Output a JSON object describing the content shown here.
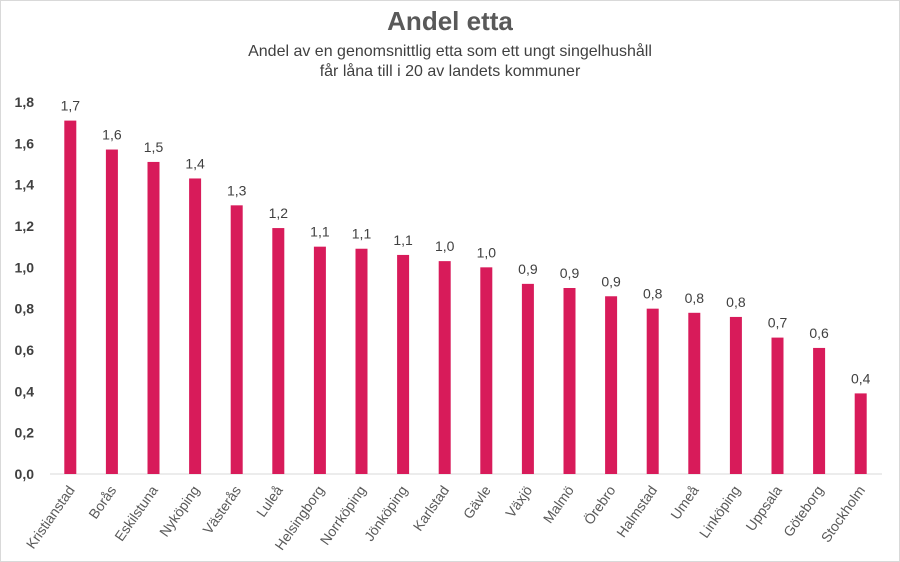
{
  "chart_data": {
    "type": "bar",
    "title": "Andel etta",
    "subtitle": [
      "Andel av en genomsnittlig etta som ett ungt singelhushåll",
      "får låna till i 20 av landets kommuner"
    ],
    "xlabel": "",
    "ylabel": "",
    "ylim": [
      0,
      1.8
    ],
    "yticks": [
      "0,0",
      "0,2",
      "0,4",
      "0,6",
      "0,8",
      "1,0",
      "1,2",
      "1,4",
      "1,6",
      "1,8"
    ],
    "grid": false,
    "bar_color": "#D81B5A",
    "categories": [
      "Kristianstad",
      "Borås",
      "Eskilstuna",
      "Nyköping",
      "Västerås",
      "Luleå",
      "Helsingborg",
      "Norrköping",
      "Jönköping",
      "Karlstad",
      "Gävle",
      "Växjö",
      "Malmö",
      "Örebro",
      "Halmstad",
      "Umeå",
      "Linköping",
      "Uppsala",
      "Göteborg",
      "Stockholm"
    ],
    "values": [
      1.71,
      1.57,
      1.51,
      1.43,
      1.3,
      1.19,
      1.1,
      1.09,
      1.06,
      1.03,
      1.0,
      0.92,
      0.9,
      0.86,
      0.8,
      0.78,
      0.76,
      0.66,
      0.61,
      0.39
    ],
    "data_labels": [
      "1,7",
      "1,6",
      "1,5",
      "1,4",
      "1,3",
      "1,2",
      "1,1",
      "1,1",
      "1,1",
      "1,0",
      "1,0",
      "0,9",
      "0,9",
      "0,9",
      "0,8",
      "0,8",
      "0,8",
      "0,7",
      "0,6",
      "0,4"
    ]
  }
}
